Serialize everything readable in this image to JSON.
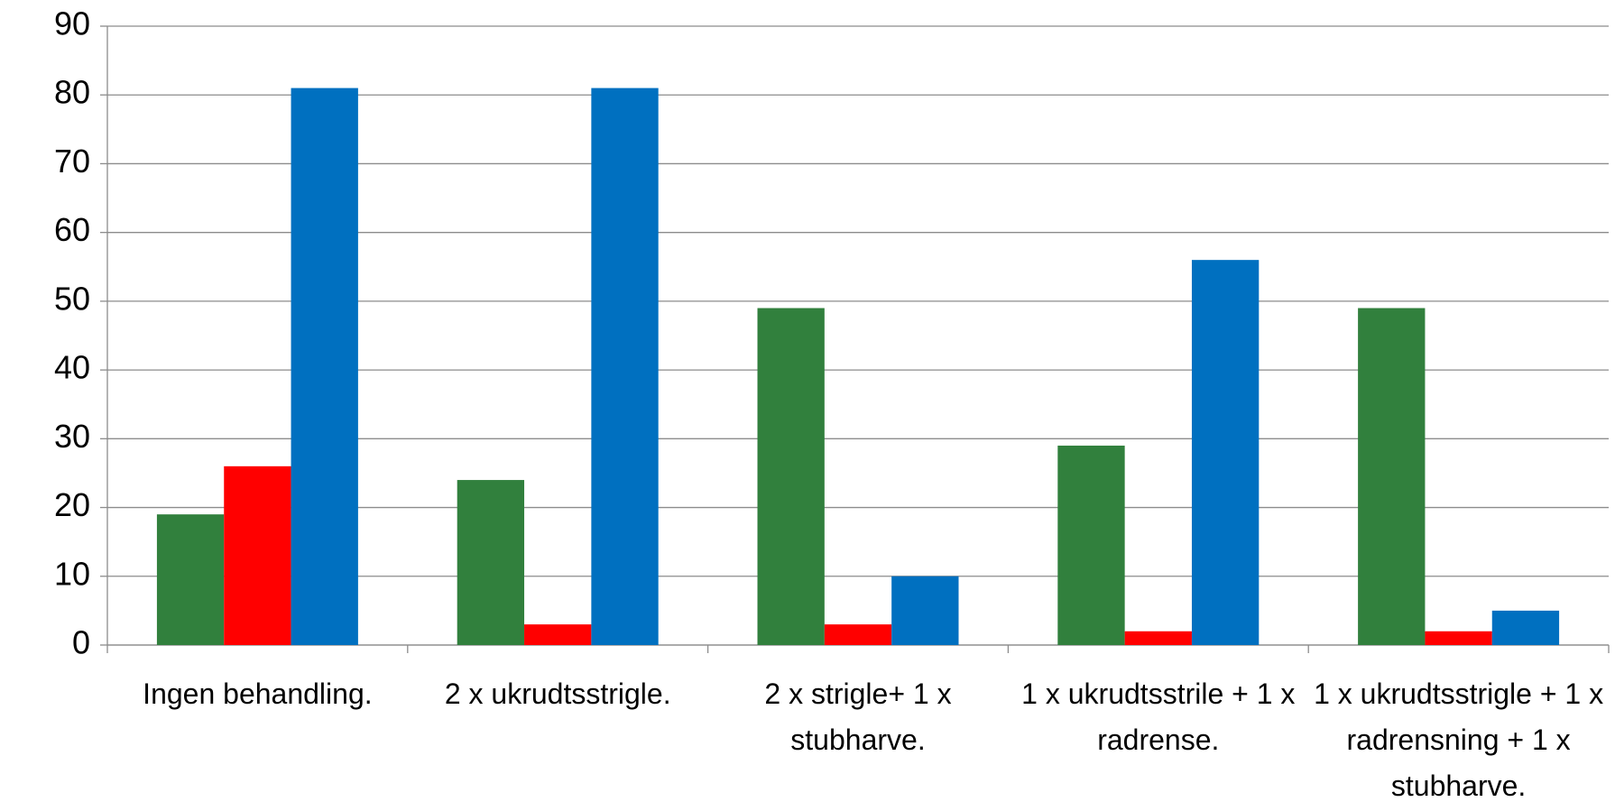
{
  "chart_data": {
    "type": "bar",
    "categories": [
      "Ingen behandling.",
      "2 x ukrudtsstrigle.",
      "2 x strigle+ 1 x stubharve.",
      "1 x ukrudtsstrile + 1 x radrense.",
      "1 x ukrudtsstrigle + 1 x radrensning + 1 x stubharve."
    ],
    "series": [
      {
        "color": "#31803d",
        "values": [
          19,
          24,
          49,
          29,
          49
        ]
      },
      {
        "color": "#ff0000",
        "values": [
          26,
          3,
          3,
          2,
          2
        ]
      },
      {
        "color": "#0070c0",
        "values": [
          81,
          81,
          10,
          56,
          5
        ]
      }
    ],
    "ylim": [
      0,
      90
    ],
    "yticks": [
      0,
      10,
      20,
      30,
      40,
      50,
      60,
      70,
      80,
      90
    ],
    "grid": true
  }
}
